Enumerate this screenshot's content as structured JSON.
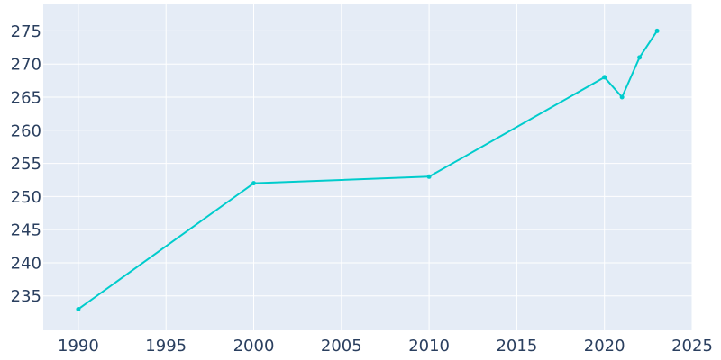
{
  "chart_data": {
    "type": "line",
    "title": "",
    "xlabel": "",
    "ylabel": "",
    "xlim": [
      1988,
      2025
    ],
    "ylim": [
      229.8,
      279
    ],
    "x_ticks": [
      1990,
      1995,
      2000,
      2005,
      2010,
      2015,
      2020,
      2025
    ],
    "x_tick_labels": [
      "1990",
      "1995",
      "2000",
      "2005",
      "2010",
      "2015",
      "2020",
      "2025"
    ],
    "y_ticks": [
      235,
      240,
      245,
      250,
      255,
      260,
      265,
      270,
      275
    ],
    "y_tick_labels": [
      "235",
      "240",
      "245",
      "250",
      "255",
      "260",
      "265",
      "270",
      "275"
    ],
    "grid": true,
    "legend": false,
    "colors": {
      "line": "#00cccc",
      "plot_background": "#e5ecf6",
      "grid": "#ffffff",
      "tick_text": "#2a3f5f"
    },
    "series": [
      {
        "x": [
          1990,
          2000,
          2010,
          2020,
          2021,
          2022,
          2023
        ],
        "values": [
          233,
          252,
          253,
          268,
          265,
          271,
          275
        ]
      }
    ]
  }
}
